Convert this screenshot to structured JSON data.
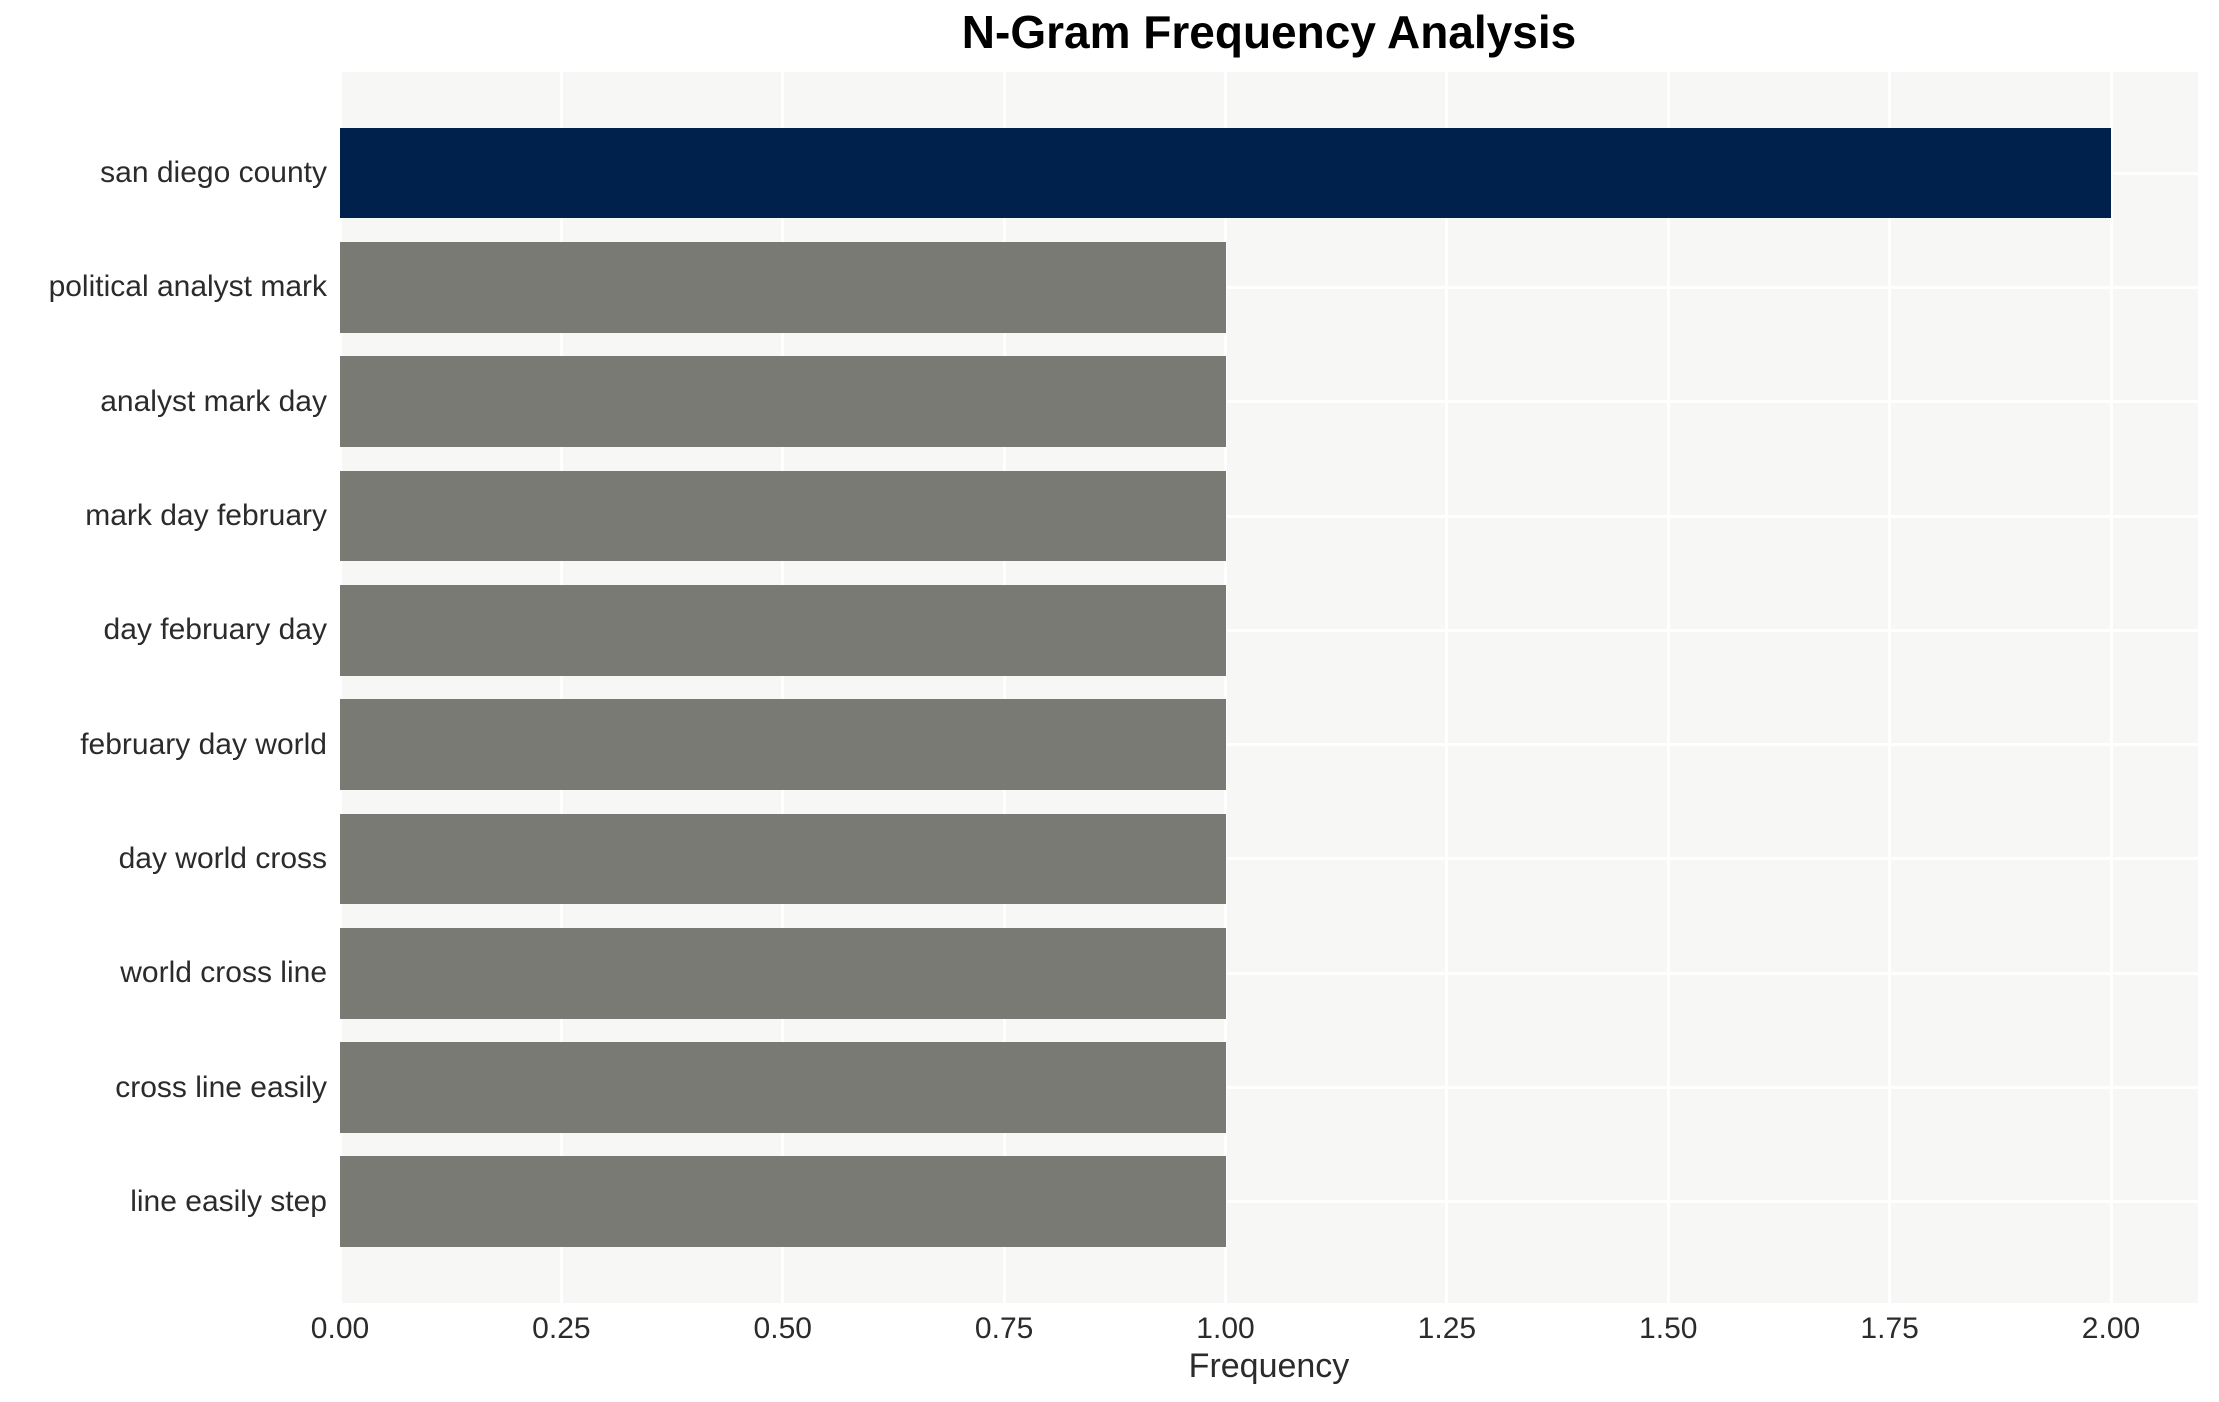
{
  "chart_data": {
    "type": "bar",
    "orientation": "horizontal",
    "title": "N-Gram Frequency Analysis",
    "xlabel": "Frequency",
    "ylabel": "",
    "categories": [
      "san diego county",
      "political analyst mark",
      "analyst mark day",
      "mark day february",
      "day february day",
      "february day world",
      "day world cross",
      "world cross line",
      "cross line easily",
      "line easily step"
    ],
    "values": [
      2,
      1,
      1,
      1,
      1,
      1,
      1,
      1,
      1,
      1
    ],
    "bar_colors": [
      "#01214d",
      "#7a7a75",
      "#7a7a75",
      "#7a7a75",
      "#7a7a75",
      "#7a7a75",
      "#7a7a75",
      "#7a7a75",
      "#7a7a75",
      "#7a7a75"
    ],
    "xlim": [
      0,
      2.1
    ],
    "x_ticks": [
      {
        "label": "0.00",
        "value": 0.0
      },
      {
        "label": "0.25",
        "value": 0.25
      },
      {
        "label": "0.50",
        "value": 0.5
      },
      {
        "label": "0.75",
        "value": 0.75
      },
      {
        "label": "1.00",
        "value": 1.0
      },
      {
        "label": "1.25",
        "value": 1.25
      },
      {
        "label": "1.50",
        "value": 1.5
      },
      {
        "label": "1.75",
        "value": 1.75
      },
      {
        "label": "2.00",
        "value": 2.0
      }
    ],
    "grid": true,
    "legend": false,
    "colors": {
      "plot_background": "#f7f7f6",
      "gridline": "#ffffff",
      "tick_text": "#2b2b2b",
      "title_text": "#000000"
    }
  }
}
